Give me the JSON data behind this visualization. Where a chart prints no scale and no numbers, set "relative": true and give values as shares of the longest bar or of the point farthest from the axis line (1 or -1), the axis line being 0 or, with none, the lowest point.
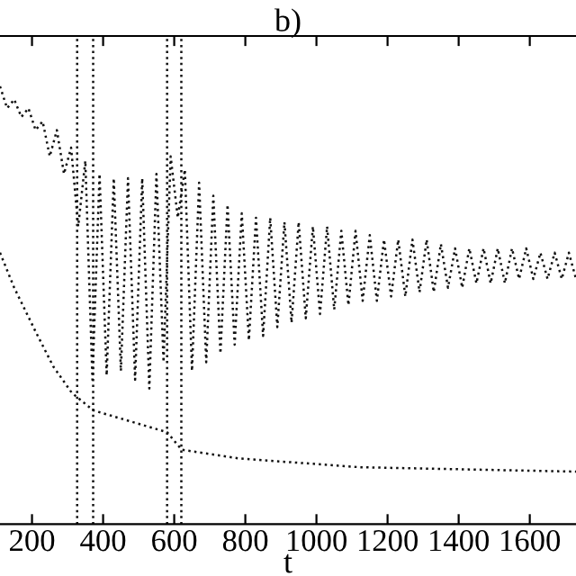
{
  "chart_data": {
    "type": "line",
    "title": "b)",
    "xlabel": "t",
    "relative": true,
    "xlim": [
      110,
      1730
    ],
    "xticks": [
      200,
      400,
      600,
      800,
      1000,
      1200,
      1400,
      1600
    ],
    "grid": false,
    "series": [
      {
        "color": "#111111",
        "line_style": "dotted",
        "x": [
          110,
          130,
          150,
          170,
          190,
          210,
          230,
          250,
          270,
          290,
          310,
          330,
          350,
          370,
          390,
          410,
          430,
          450,
          470,
          490,
          510,
          530,
          550,
          570,
          590,
          610,
          630,
          650,
          670,
          690,
          710,
          730,
          750,
          770,
          790,
          810,
          830,
          850,
          870,
          890,
          910,
          930,
          950,
          970,
          990,
          1010,
          1030,
          1050,
          1070,
          1090,
          1110,
          1130,
          1150,
          1170,
          1190,
          1210,
          1230,
          1250,
          1270,
          1290,
          1310,
          1330,
          1350,
          1370,
          1390,
          1410,
          1430,
          1450,
          1470,
          1490,
          1510,
          1530,
          1550,
          1570,
          1590,
          1610,
          1630,
          1650,
          1670,
          1690,
          1710,
          1730
        ],
        "values": [
          1.0,
          0.95,
          0.97,
          0.93,
          0.95,
          0.9,
          0.92,
          0.84,
          0.9,
          0.8,
          0.86,
          0.68,
          0.83,
          0.33,
          0.8,
          0.34,
          0.79,
          0.35,
          0.79,
          0.33,
          0.79,
          0.31,
          0.8,
          0.37,
          0.84,
          0.7,
          0.81,
          0.35,
          0.78,
          0.37,
          0.75,
          0.39,
          0.73,
          0.41,
          0.71,
          0.42,
          0.7,
          0.43,
          0.7,
          0.45,
          0.69,
          0.46,
          0.69,
          0.47,
          0.68,
          0.48,
          0.68,
          0.49,
          0.67,
          0.5,
          0.67,
          0.51,
          0.66,
          0.51,
          0.65,
          0.52,
          0.65,
          0.52,
          0.65,
          0.53,
          0.65,
          0.53,
          0.64,
          0.54,
          0.63,
          0.54,
          0.63,
          0.55,
          0.63,
          0.55,
          0.63,
          0.55,
          0.63,
          0.56,
          0.63,
          0.56,
          0.62,
          0.56,
          0.62,
          0.56,
          0.62,
          0.56
        ]
      },
      {
        "color": "#111111",
        "line_style": "dotted",
        "x": [
          110,
          150,
          210,
          260,
          312,
          372,
          580,
          621,
          783,
          1123,
          1730
        ],
        "values": [
          0.62,
          0.54,
          0.44,
          0.36,
          0.3,
          0.26,
          0.21,
          0.17,
          0.15,
          0.13,
          0.12
        ]
      }
    ],
    "ref_lines": [
      {
        "axis": "x",
        "value": 327,
        "color": "#111111",
        "line_style": "dotted"
      },
      {
        "axis": "x",
        "value": 372,
        "color": "#111111",
        "line_style": "dotted"
      },
      {
        "axis": "x",
        "value": 580,
        "color": "#111111",
        "line_style": "dotted"
      },
      {
        "axis": "x",
        "value": 620,
        "color": "#111111",
        "line_style": "dotted"
      }
    ]
  }
}
